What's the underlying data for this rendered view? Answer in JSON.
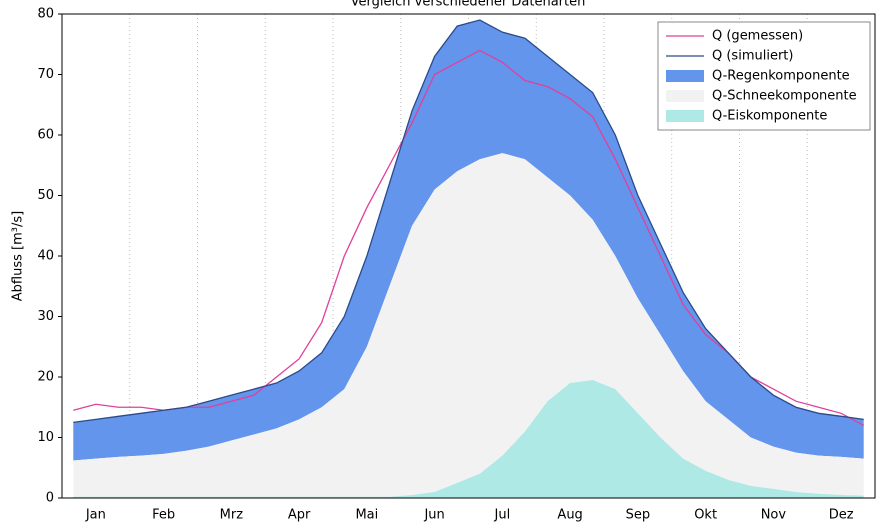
{
  "chart_data": {
    "type": "stacked-area-line",
    "title": "Vergleich verschiedener Datenarten",
    "y_label": "Abfluss [m³/s]",
    "categories": [
      null,
      "Jan",
      null,
      null,
      "Feb",
      null,
      null,
      "Mrz",
      null,
      null,
      "Apr",
      null,
      null,
      "Mai",
      null,
      null,
      "Jun",
      null,
      null,
      "Jul",
      null,
      null,
      "Aug",
      null,
      null,
      "Sep",
      null,
      null,
      "Okt",
      null,
      null,
      "Nov",
      null,
      null,
      "Dez",
      null
    ],
    "ylim": [
      0,
      80
    ],
    "yticks": [
      0,
      10,
      20,
      30,
      40,
      50,
      60,
      70,
      80
    ],
    "legend": "upper right",
    "areas": [
      {
        "name": "Q-Regenkomponente",
        "color": "#6495ed",
        "values": [
          6.3,
          6.5,
          6.7,
          7,
          7.2,
          7.2,
          7.5,
          7.5,
          7.5,
          7.5,
          8,
          9,
          12,
          15,
          17,
          19,
          22,
          24,
          23,
          20,
          20,
          20,
          20,
          21,
          20,
          17,
          15,
          13,
          12,
          11,
          10,
          8.5,
          7.5,
          7,
          6.7,
          6.5
        ]
      },
      {
        "name": "Q-Schneekomponente",
        "color": "#f2f2f2",
        "values": [
          6,
          6.3,
          6.6,
          6.8,
          7.1,
          7.6,
          8.3,
          9.3,
          10.3,
          11.3,
          12.8,
          14.8,
          17.8,
          24.8,
          34.8,
          44.5,
          50,
          51.5,
          52,
          50,
          45,
          37,
          31,
          26.5,
          22,
          19,
          17,
          14.5,
          11.5,
          10,
          8,
          7,
          6.5,
          6.3,
          6.3,
          6.1
        ]
      },
      {
        "name": "Q-Eiskomponente",
        "color": "#aee9e6",
        "values": [
          0.2,
          0.2,
          0.2,
          0.2,
          0.2,
          0.2,
          0.2,
          0.2,
          0.2,
          0.2,
          0.2,
          0.2,
          0.2,
          0.2,
          0.2,
          0.5,
          1,
          2.5,
          4,
          7,
          11,
          16,
          19,
          19.5,
          18,
          14,
          10,
          6.5,
          4.5,
          3,
          2,
          1.5,
          1,
          0.7,
          0.5,
          0.4
        ]
      }
    ],
    "lines": [
      {
        "name": "Q (gemessen)",
        "color": "#e0409a",
        "values": [
          14.5,
          15.5,
          15,
          15,
          14.5,
          15,
          15,
          16,
          17,
          20,
          23,
          29,
          40,
          48,
          55,
          62,
          70,
          72,
          74,
          72,
          69,
          68,
          66,
          63,
          56,
          48,
          40,
          32,
          27,
          24,
          20,
          18,
          16,
          15,
          14,
          12
        ]
      },
      {
        "name": "Q (simuliert)",
        "color": "#2a4a8a",
        "values": [
          12.5,
          13,
          13.5,
          14,
          14.5,
          15,
          16,
          17,
          18,
          19,
          21,
          24,
          30,
          40,
          52,
          64,
          73,
          78,
          79,
          77,
          76,
          73,
          70,
          67,
          60,
          50,
          42,
          34,
          28,
          24,
          20,
          17,
          15,
          14,
          13.5,
          13
        ]
      }
    ]
  }
}
